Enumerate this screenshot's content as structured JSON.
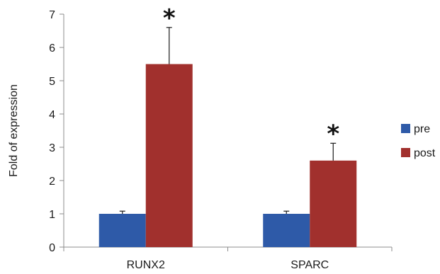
{
  "chart_data": {
    "type": "bar",
    "title": "",
    "xlabel": "",
    "ylabel": "Fold of expression",
    "ylim": [
      0,
      7
    ],
    "yticks": [
      0,
      1,
      2,
      3,
      4,
      5,
      6,
      7
    ],
    "categories": [
      "RUNX2",
      "SPARC"
    ],
    "series": [
      {
        "name": "pre",
        "color": "#2e5aa8",
        "values": [
          1.0,
          1.0
        ],
        "errors": [
          0.08,
          0.08
        ]
      },
      {
        "name": "post",
        "color": "#a1302d",
        "values": [
          5.5,
          2.6
        ],
        "errors": [
          1.1,
          0.52
        ]
      }
    ],
    "annotations": [
      {
        "category": "RUNX2",
        "series": "post",
        "text": "*"
      },
      {
        "category": "SPARC",
        "series": "post",
        "text": "*"
      }
    ],
    "legend": {
      "position": "right"
    },
    "grid": false
  }
}
